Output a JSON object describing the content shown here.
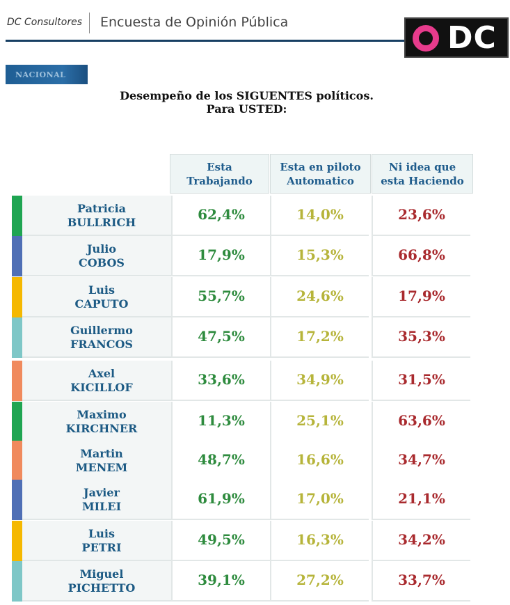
{
  "header": {
    "brand": "DC Consultores",
    "title": "Encuesta de Opinión Pública",
    "logo_text": "DC"
  },
  "badge": "NACIONAL",
  "title_line1": "Desempeño de los SIGUENTES políticos.",
  "title_line2": "Para USTED:",
  "columns": [
    {
      "line1": "Esta",
      "line2": "Trabajando"
    },
    {
      "line1": "Esta en piloto",
      "line2": "Automatico"
    },
    {
      "line1": "Ni idea que",
      "line2": "esta Haciendo"
    }
  ],
  "colors": {
    "col1": "#2e8b3e",
    "col2": "#b6b43a",
    "col3": "#a92a2e",
    "header_text": "#1f5c8c",
    "logo_accent": "#e73b8c"
  },
  "rows": [
    {
      "first": "Patricia",
      "last": "BULLRICH",
      "strip": "#1fa552",
      "v1": "62,4%",
      "v2": "14,0%",
      "v3": "23,6%"
    },
    {
      "first": "Julio",
      "last": "COBOS",
      "strip": "#4f6fb5",
      "v1": "17,9%",
      "v2": "15,3%",
      "v3": "66,8%"
    },
    {
      "first": "Luis",
      "last": "CAPUTO",
      "strip": "#f5b800",
      "v1": "55,7%",
      "v2": "24,6%",
      "v3": "17,9%"
    },
    {
      "first": "Guillermo",
      "last": "FRANCOS",
      "strip": "#7ec7c7",
      "v1": "47,5%",
      "v2": "17,2%",
      "v3": "35,3%"
    },
    {
      "first": "Axel",
      "last": "KICILLOF",
      "strip": "#f08a5d",
      "v1": "33,6%",
      "v2": "34,9%",
      "v3": "31,5%"
    },
    {
      "first": "Maximo",
      "last": "KIRCHNER",
      "strip": "#1fa552",
      "v1": "11,3%",
      "v2": "25,1%",
      "v3": "63,6%"
    },
    {
      "first": "Martin",
      "last": "MENEM",
      "strip": "#f08a5d",
      "v1": "48,7%",
      "v2": "16,6%",
      "v3": "34,7%"
    },
    {
      "first": "Javier",
      "last": "MILEI",
      "strip": "#4f6fb5",
      "v1": "61,9%",
      "v2": "17,0%",
      "v3": "21,1%"
    },
    {
      "first": "Luis",
      "last": "PETRI",
      "strip": "#f5b800",
      "v1": "49,5%",
      "v2": "16,3%",
      "v3": "34,2%"
    },
    {
      "first": "Miguel",
      "last": "PICHETTO",
      "strip": "#7ec7c7",
      "v1": "39,1%",
      "v2": "27,2%",
      "v3": "33,7%"
    }
  ]
}
